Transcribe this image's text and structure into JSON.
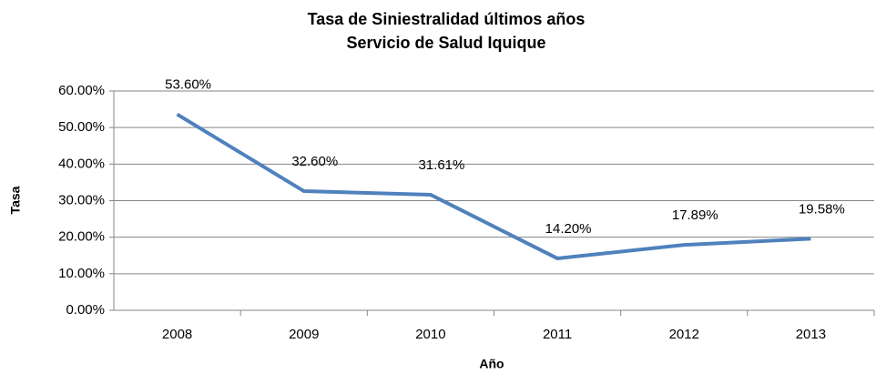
{
  "chart_data": {
    "type": "line",
    "title": "Tasa de Siniestralidad últimos años",
    "subtitle": "Servicio de Salud Iquique",
    "x_label": "Año",
    "y_label": "Tasa",
    "categories": [
      "2008",
      "2009",
      "2010",
      "2011",
      "2012",
      "2013"
    ],
    "series": [
      {
        "name": "Tasa",
        "color": "#4f81bd",
        "values": [
          53.6,
          32.6,
          31.61,
          14.2,
          17.89,
          19.58
        ],
        "value_labels": [
          "53.60%",
          "32.60%",
          "31.61%",
          "14.20%",
          "17.89%",
          "19.58%"
        ]
      }
    ],
    "ylim": [
      0,
      60
    ],
    "yticks": [
      {
        "value": 0,
        "label": "0.00%"
      },
      {
        "value": 10,
        "label": "10.00%"
      },
      {
        "value": 20,
        "label": "20.00%"
      },
      {
        "value": 30,
        "label": "30.00%"
      },
      {
        "value": 40,
        "label": "40.00%"
      },
      {
        "value": 50,
        "label": "50.00%"
      },
      {
        "value": 60,
        "label": "60.00%"
      }
    ],
    "grid": true
  }
}
